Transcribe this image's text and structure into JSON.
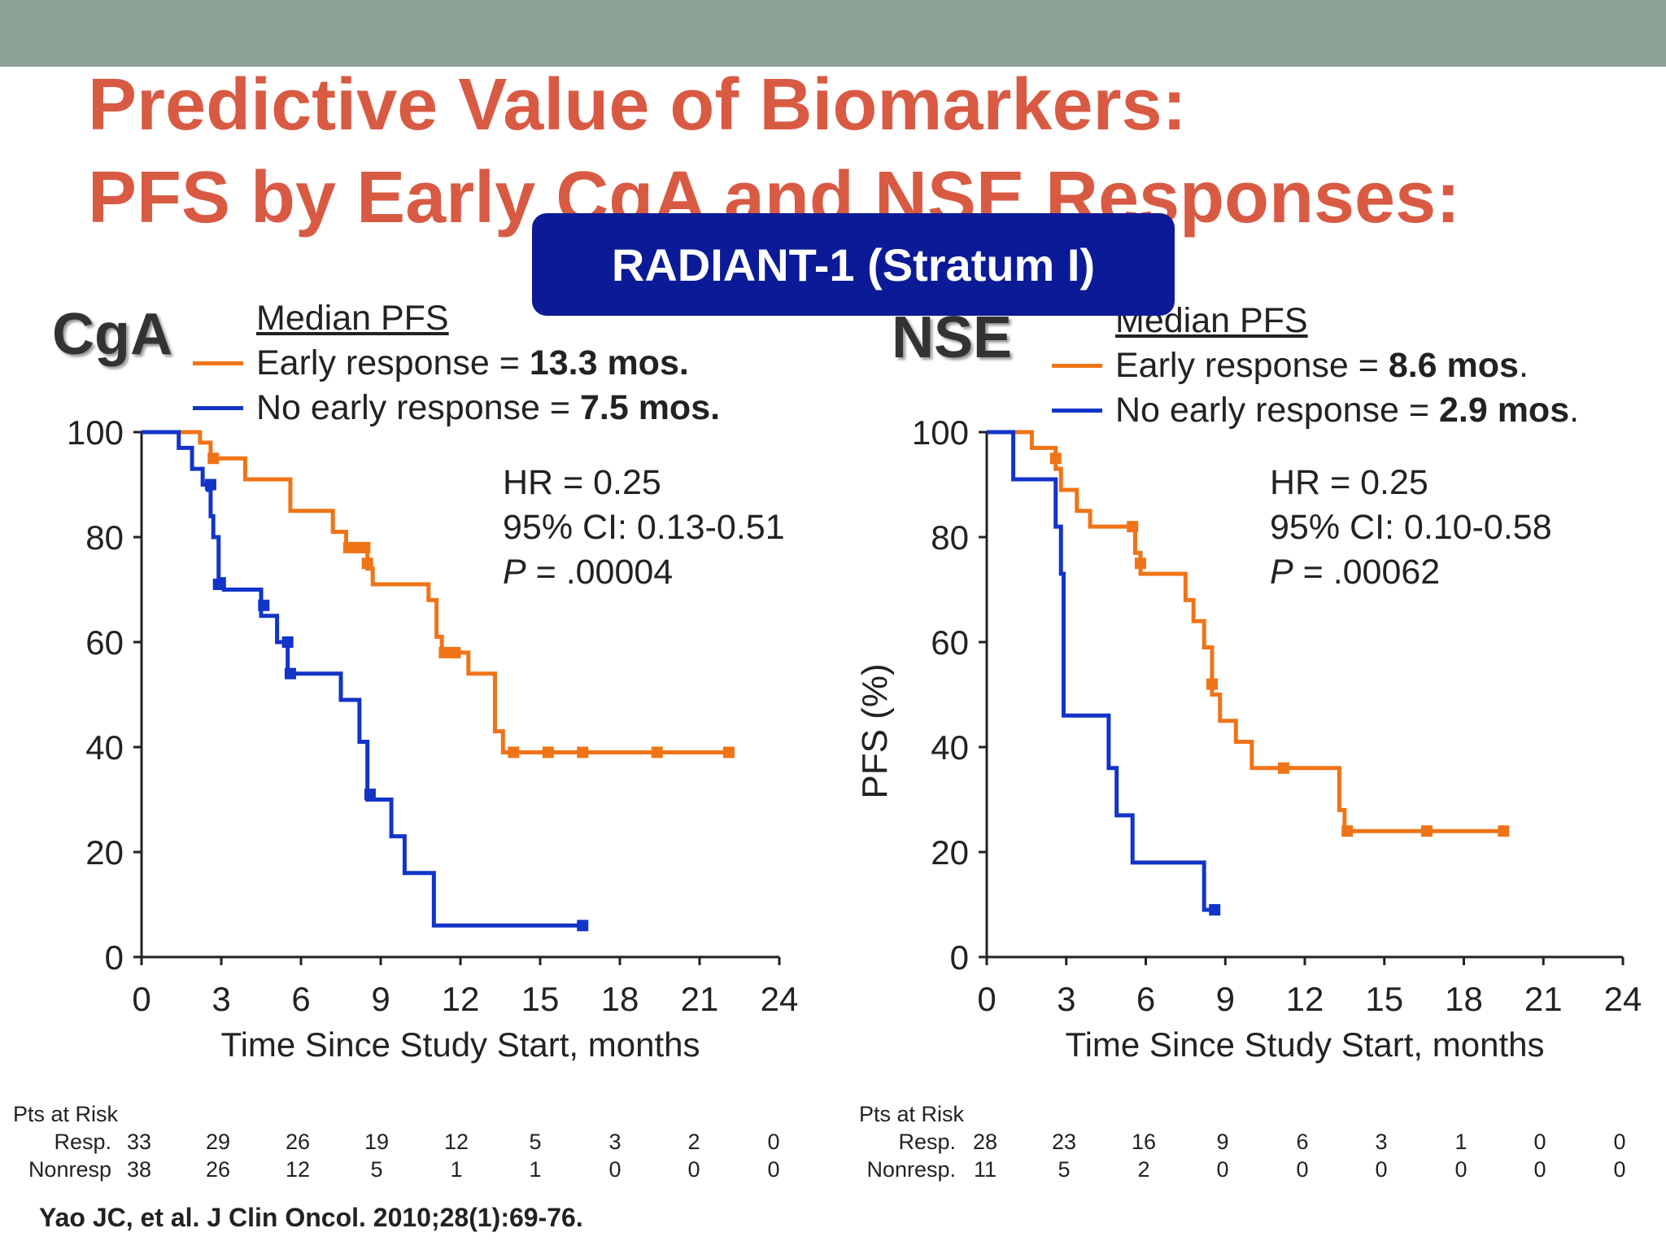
{
  "slide": {
    "title_line1": "Predictive Value of Biomarkers:",
    "title_line2": "PFS by Early CgA and NSE Responses:",
    "banner": "RADIANT-1 (Stratum I)",
    "citation": "Yao JC, et al. J Clin Oncol. 2010;28(1):69-76.",
    "colors": {
      "title": "#d95a43",
      "banner": "#0b1a96",
      "topbar": "#8fa297",
      "orange": "#f07417",
      "blue": "#1234c8"
    }
  },
  "chart_data": [
    {
      "type": "line",
      "subtype": "kaplan-meier",
      "panel_label": "CgA",
      "legend_heading": "Median PFS",
      "legend": [
        {
          "prefix": "Early response = ",
          "value": "13.3 mos.",
          "suffix": "",
          "color": "#f07417"
        },
        {
          "prefix": "No early response = ",
          "value": "7.5 mos.",
          "suffix": "",
          "color": "#1234c8"
        }
      ],
      "stats": {
        "hr": "HR = 0.25",
        "ci": "95% CI: 0.13-0.51",
        "p_label": "P",
        "p_value": " = .00004"
      },
      "xlabel": "Time Since Study Start, months",
      "ylabel": "",
      "xlim": [
        0,
        24
      ],
      "ylim": [
        0,
        100
      ],
      "xticks": [
        "0",
        "3",
        "6",
        "9",
        "12",
        "15",
        "18",
        "21",
        "24"
      ],
      "yticks": [
        "0",
        "20",
        "40",
        "60",
        "80",
        "100"
      ],
      "series": [
        {
          "color": "#f07417",
          "steps": [
            [
              0,
              100
            ],
            [
              2,
              100
            ],
            [
              2.2,
              98
            ],
            [
              2.6,
              95
            ],
            [
              3.9,
              94
            ],
            [
              3.9,
              91
            ],
            [
              5.6,
              91
            ],
            [
              5.6,
              85
            ],
            [
              7.2,
              85
            ],
            [
              7.2,
              81
            ],
            [
              7.7,
              81
            ],
            [
              7.7,
              78
            ],
            [
              8.5,
              78
            ],
            [
              8.5,
              74
            ],
            [
              8.7,
              74
            ],
            [
              8.7,
              71
            ],
            [
              10.8,
              71
            ],
            [
              10.8,
              68
            ],
            [
              11.1,
              68
            ],
            [
              11.1,
              61
            ],
            [
              11.3,
              61
            ],
            [
              11.3,
              58
            ],
            [
              12.3,
              58
            ],
            [
              12.3,
              54
            ],
            [
              13.3,
              54
            ],
            [
              13.3,
              43
            ],
            [
              13.6,
              43
            ],
            [
              13.6,
              39
            ],
            [
              22.1,
              39
            ]
          ],
          "censors": [
            [
              2.7,
              95
            ],
            [
              7.8,
              78
            ],
            [
              8.2,
              78
            ],
            [
              8.4,
              78
            ],
            [
              8.5,
              75
            ],
            [
              11.4,
              58
            ],
            [
              11.8,
              58
            ],
            [
              14.0,
              39
            ],
            [
              15.3,
              39
            ],
            [
              16.6,
              39
            ],
            [
              19.4,
              39
            ],
            [
              22.1,
              39
            ]
          ]
        },
        {
          "color": "#1234c8",
          "steps": [
            [
              0,
              100
            ],
            [
              1.2,
              100
            ],
            [
              1.4,
              97
            ],
            [
              1.9,
              93
            ],
            [
              2.3,
              90
            ],
            [
              2.5,
              89
            ],
            [
              2.6,
              84
            ],
            [
              2.7,
              80
            ],
            [
              2.9,
              72
            ],
            [
              3.1,
              70
            ],
            [
              4.5,
              70
            ],
            [
              4.5,
              65
            ],
            [
              5.1,
              65
            ],
            [
              5.1,
              60
            ],
            [
              5.5,
              60
            ],
            [
              5.5,
              54
            ],
            [
              7.5,
              54
            ],
            [
              7.5,
              49
            ],
            [
              8.2,
              49
            ],
            [
              8.2,
              41
            ],
            [
              8.5,
              41
            ],
            [
              8.5,
              30
            ],
            [
              9.4,
              30
            ],
            [
              9.4,
              23
            ],
            [
              9.9,
              23
            ],
            [
              9.9,
              16
            ],
            [
              11.0,
              16
            ],
            [
              11.0,
              6
            ],
            [
              16.6,
              6
            ]
          ],
          "censors": [
            [
              2.6,
              90
            ],
            [
              2.9,
              71
            ],
            [
              4.6,
              67
            ],
            [
              5.5,
              60
            ],
            [
              5.6,
              54
            ],
            [
              8.6,
              31
            ],
            [
              16.6,
              6
            ]
          ]
        }
      ],
      "risk_table": {
        "title": "Pts at Risk",
        "rows": [
          {
            "label": "Resp.",
            "values": [
              "33",
              "29",
              "26",
              "19",
              "12",
              "5",
              "3",
              "2",
              "0"
            ]
          },
          {
            "label": "Nonresp",
            "values": [
              "38",
              "26",
              "12",
              "5",
              "1",
              "1",
              "0",
              "0",
              "0"
            ]
          }
        ]
      }
    },
    {
      "type": "line",
      "subtype": "kaplan-meier",
      "panel_label": "NSE",
      "legend_heading": "Median PFS",
      "legend": [
        {
          "prefix": "Early response = ",
          "value": "8.6 mos",
          "suffix": ".",
          "color": "#f07417"
        },
        {
          "prefix": "No early response = ",
          "value": "2.9 mos",
          "suffix": ".",
          "color": "#1234c8"
        }
      ],
      "stats": {
        "hr": "HR = 0.25",
        "ci": "95% CI: 0.10-0.58",
        "p_label": "P",
        "p_value": " = .00062"
      },
      "xlabel": "Time Since Study Start, months",
      "ylabel": "PFS (%)",
      "xlim": [
        0,
        24
      ],
      "ylim": [
        0,
        100
      ],
      "xticks": [
        "0",
        "3",
        "6",
        "9",
        "12",
        "15",
        "18",
        "21",
        "24"
      ],
      "yticks": [
        "0",
        "20",
        "40",
        "60",
        "80",
        "100"
      ],
      "series": [
        {
          "color": "#f07417",
          "steps": [
            [
              0,
              100
            ],
            [
              1.7,
              100
            ],
            [
              1.7,
              97
            ],
            [
              2.6,
              97
            ],
            [
              2.6,
              93
            ],
            [
              2.8,
              93
            ],
            [
              2.8,
              89
            ],
            [
              3.4,
              89
            ],
            [
              3.4,
              85
            ],
            [
              3.9,
              85
            ],
            [
              3.9,
              82
            ],
            [
              5.6,
              82
            ],
            [
              5.6,
              77
            ],
            [
              5.8,
              77
            ],
            [
              5.8,
              73
            ],
            [
              7.5,
              73
            ],
            [
              7.5,
              68
            ],
            [
              7.8,
              68
            ],
            [
              7.8,
              64
            ],
            [
              8.2,
              64
            ],
            [
              8.2,
              59
            ],
            [
              8.5,
              59
            ],
            [
              8.5,
              50
            ],
            [
              8.8,
              50
            ],
            [
              8.8,
              45
            ],
            [
              9.4,
              45
            ],
            [
              9.4,
              41
            ],
            [
              10.0,
              41
            ],
            [
              10.0,
              36
            ],
            [
              13.3,
              36
            ],
            [
              13.3,
              28
            ],
            [
              13.5,
              28
            ],
            [
              13.5,
              24
            ],
            [
              19.5,
              24
            ]
          ],
          "censors": [
            [
              2.6,
              95
            ],
            [
              5.5,
              82
            ],
            [
              5.8,
              75
            ],
            [
              8.5,
              52
            ],
            [
              11.2,
              36
            ],
            [
              13.6,
              24
            ],
            [
              16.6,
              24
            ],
            [
              19.5,
              24
            ]
          ]
        },
        {
          "color": "#1234c8",
          "steps": [
            [
              0,
              100
            ],
            [
              1.0,
              100
            ],
            [
              1.0,
              91
            ],
            [
              2.6,
              91
            ],
            [
              2.6,
              82
            ],
            [
              2.8,
              73
            ],
            [
              2.9,
              64
            ],
            [
              2.9,
              46
            ],
            [
              4.6,
              46
            ],
            [
              4.6,
              36
            ],
            [
              4.9,
              36
            ],
            [
              4.9,
              27
            ],
            [
              5.5,
              27
            ],
            [
              5.5,
              18
            ],
            [
              8.2,
              18
            ],
            [
              8.2,
              9
            ],
            [
              8.6,
              9
            ]
          ],
          "censors": [
            [
              8.6,
              9
            ]
          ]
        }
      ],
      "risk_table": {
        "title": "Pts at Risk",
        "rows": [
          {
            "label": "Resp.",
            "values": [
              "28",
              "23",
              "16",
              "9",
              "6",
              "3",
              "1",
              "0",
              "0"
            ]
          },
          {
            "label": "Nonresp.",
            "values": [
              "11",
              "5",
              "2",
              "0",
              "0",
              "0",
              "0",
              "0",
              "0"
            ]
          }
        ]
      }
    }
  ]
}
